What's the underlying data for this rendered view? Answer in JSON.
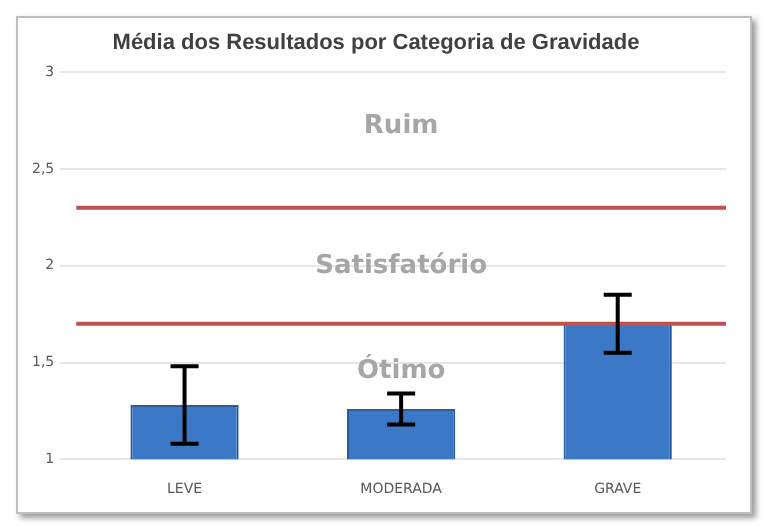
{
  "chart_data": {
    "type": "bar",
    "title": "Média dos Resultados por Categoria de Gravidade",
    "categories": [
      "LEVE",
      "MODERADA",
      "GRAVE"
    ],
    "values": [
      1.28,
      1.26,
      1.7
    ],
    "errors": [
      0.2,
      0.08,
      0.15
    ],
    "color": "#3b78c6",
    "ylim": [
      1,
      3
    ],
    "yticks": [
      1,
      {
        "value": 1.5,
        "label": "1,5"
      },
      2,
      {
        "value": 2.5,
        "label": "2,5"
      },
      3
    ],
    "grid": "y",
    "ref_lines": [
      {
        "axis": "y",
        "value": 2.3,
        "color": "#c0504d"
      },
      {
        "axis": "y",
        "value": 1.7,
        "color": "#c0504d"
      }
    ],
    "annotations": [
      "Ruim",
      "Satisfatório",
      "Ótimo"
    ]
  }
}
